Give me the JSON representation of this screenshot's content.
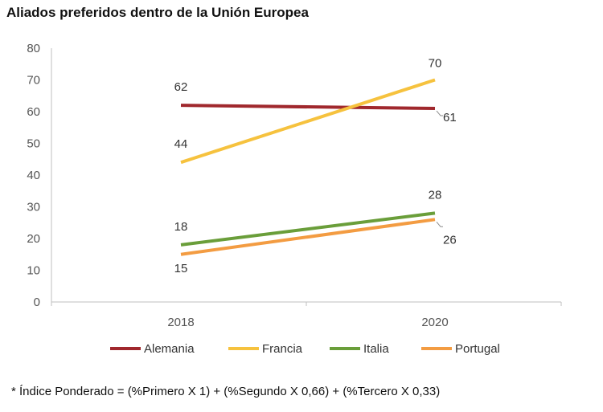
{
  "chart_data": {
    "type": "line",
    "title": "Aliados preferidos dentro de la Unión Europea",
    "categories": [
      "2018",
      "2020"
    ],
    "ylim": [
      0,
      80
    ],
    "yticks": [
      0,
      10,
      20,
      30,
      40,
      50,
      60,
      70,
      80
    ],
    "xlabel": "",
    "ylabel": "",
    "grid": false,
    "legend_position": "bottom",
    "series": [
      {
        "name": "Alemania",
        "values": [
          62,
          61
        ],
        "color": "#A0282D"
      },
      {
        "name": "Francia",
        "values": [
          44,
          70
        ],
        "color": "#F6C23E"
      },
      {
        "name": "Italia",
        "values": [
          18,
          28
        ],
        "color": "#6A9E3A"
      },
      {
        "name": "Portugal",
        "values": [
          15,
          26
        ],
        "color": "#F39C42"
      }
    ],
    "data_labels": [
      {
        "series": "Alemania",
        "category": "2018",
        "text": "62"
      },
      {
        "series": "Alemania",
        "category": "2020",
        "text": "61"
      },
      {
        "series": "Francia",
        "category": "2018",
        "text": "44"
      },
      {
        "series": "Francia",
        "category": "2020",
        "text": "70"
      },
      {
        "series": "Italia",
        "category": "2018",
        "text": "18"
      },
      {
        "series": "Italia",
        "category": "2020",
        "text": "28"
      },
      {
        "series": "Portugal",
        "category": "2018",
        "text": "15"
      },
      {
        "series": "Portugal",
        "category": "2020",
        "text": "26"
      }
    ]
  },
  "footnote": "* Índice Ponderado = (%Primero X 1) + (%Segundo X 0,66) + (%Tercero X 0,33)"
}
